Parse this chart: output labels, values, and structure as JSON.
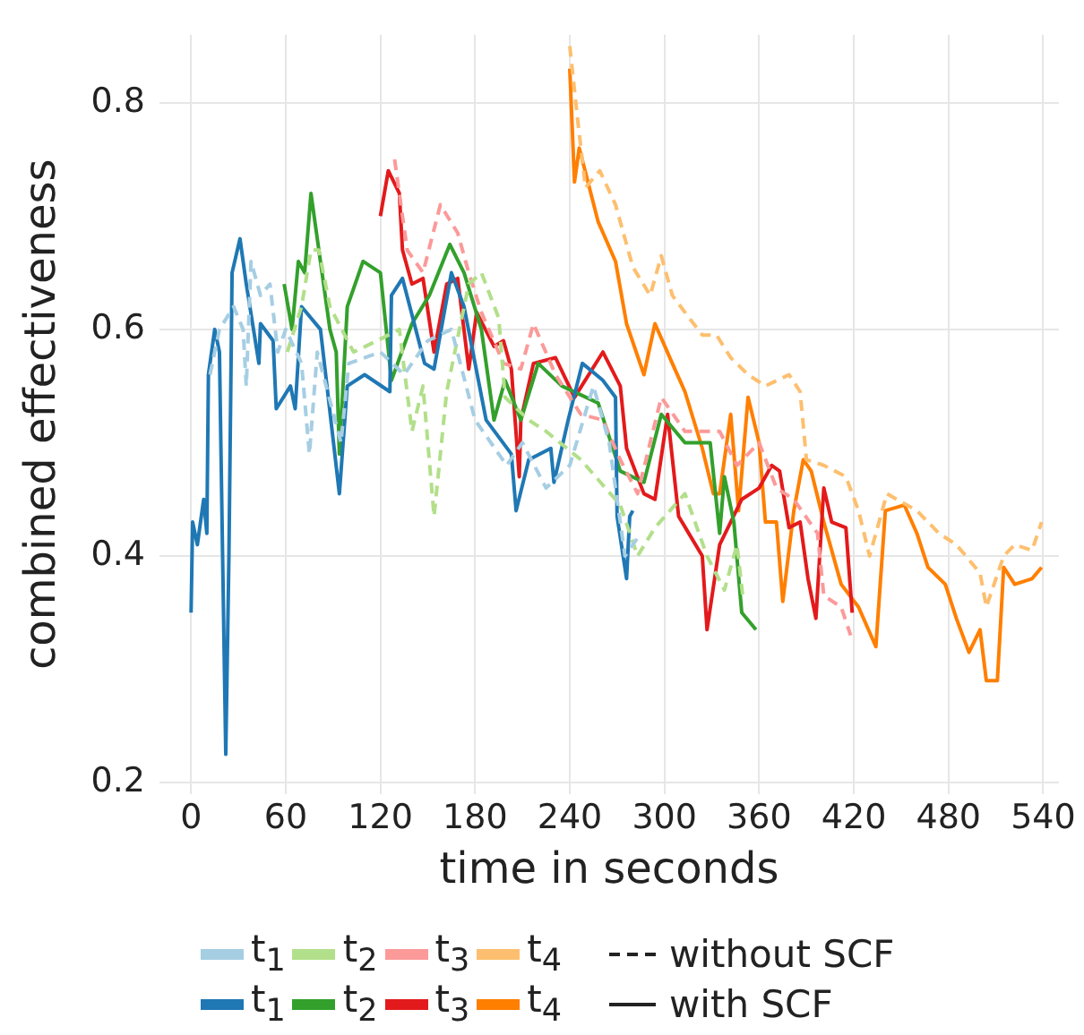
{
  "chart_data": {
    "type": "line",
    "xlabel": "time in seconds",
    "ylabel": "combined effectiveness",
    "xlim": [
      -20,
      550
    ],
    "xticks": [
      0,
      60,
      120,
      180,
      240,
      300,
      360,
      420,
      480,
      540
    ],
    "ylim": [
      0.19,
      0.86
    ],
    "yticks": [
      0.2,
      0.4,
      0.6,
      0.8
    ],
    "grid": true,
    "legend": "bottom",
    "marker": "none",
    "annotations": [
      "without SCF",
      "with SCF"
    ],
    "series": [
      {
        "name": "t$_{1}$",
        "color": "#a6cee3",
        "line_style": "dashed",
        "x": [
          12,
          18,
          27,
          33,
          35,
          38,
          44,
          50,
          55,
          60,
          70,
          75,
          80,
          95,
          100,
          120,
          135,
          150,
          165,
          180,
          200,
          210,
          225,
          240,
          255,
          265,
          275,
          285
        ],
        "values": [
          0.56,
          0.6,
          0.62,
          0.6,
          0.55,
          0.66,
          0.63,
          0.64,
          0.58,
          0.6,
          0.57,
          0.49,
          0.58,
          0.5,
          0.57,
          0.58,
          0.56,
          0.59,
          0.6,
          0.52,
          0.48,
          0.5,
          0.46,
          0.48,
          0.55,
          0.5,
          0.4,
          0.42
        ]
      },
      {
        "name": "t$_{2}$",
        "color": "#b2df8a",
        "line_style": "dashed",
        "x": [
          61,
          70,
          76,
          81,
          88,
          103,
          118,
          132,
          140,
          147,
          154,
          162,
          176,
          184,
          195,
          199,
          214,
          225,
          247,
          272,
          283,
          294,
          313,
          327,
          338,
          346,
          350
        ],
        "values": [
          0.58,
          0.62,
          0.67,
          0.67,
          0.62,
          0.58,
          0.59,
          0.6,
          0.51,
          0.55,
          0.435,
          0.545,
          0.64,
          0.65,
          0.61,
          0.54,
          0.52,
          0.51,
          0.485,
          0.445,
          0.4,
          0.425,
          0.455,
          0.4,
          0.37,
          0.41,
          0.36
        ]
      },
      {
        "name": "t$_{3}$",
        "color": "#fb9a99",
        "line_style": "dashed",
        "x": [
          129,
          137,
          147,
          158,
          169,
          176,
          184,
          198,
          209,
          217,
          231,
          247,
          261,
          272,
          283,
          298,
          313,
          327,
          335,
          346,
          360,
          371,
          382,
          397,
          401,
          412,
          418
        ],
        "values": [
          0.75,
          0.67,
          0.65,
          0.71,
          0.685,
          0.65,
          0.615,
          0.57,
          0.565,
          0.605,
          0.56,
          0.525,
          0.52,
          0.485,
          0.455,
          0.54,
          0.51,
          0.51,
          0.51,
          0.48,
          0.5,
          0.46,
          0.45,
          0.42,
          0.365,
          0.355,
          0.33
        ]
      },
      {
        "name": "t$_{4}$",
        "color": "#fdbf6f",
        "line_style": "dashed",
        "x": [
          240,
          245,
          250,
          259,
          269,
          280,
          291,
          298,
          305,
          313,
          324,
          333,
          342,
          353,
          364,
          379,
          386,
          390,
          401,
          415,
          423,
          430,
          441,
          460,
          474,
          485,
          500,
          504,
          515,
          522,
          533,
          539
        ],
        "values": [
          0.85,
          0.785,
          0.725,
          0.74,
          0.71,
          0.655,
          0.63,
          0.665,
          0.63,
          0.615,
          0.595,
          0.595,
          0.575,
          0.56,
          0.55,
          0.56,
          0.545,
          0.485,
          0.48,
          0.47,
          0.44,
          0.4,
          0.455,
          0.44,
          0.42,
          0.41,
          0.385,
          0.355,
          0.4,
          0.41,
          0.405,
          0.43
        ]
      },
      {
        "name": "t$_{1}$",
        "color": "#1f78b4",
        "line_style": "solid",
        "x": [
          0,
          1,
          4,
          8,
          10,
          11,
          15,
          18,
          20,
          22,
          24,
          26,
          31,
          35,
          43,
          44,
          52,
          54,
          63,
          66,
          70,
          82,
          94,
          99,
          110,
          126,
          127,
          134,
          148,
          154,
          165,
          173,
          187,
          203,
          206,
          214,
          228,
          230,
          239,
          248,
          261,
          269,
          270,
          276,
          278,
          280
        ],
        "values": [
          0.35,
          0.43,
          0.41,
          0.45,
          0.42,
          0.56,
          0.6,
          0.58,
          0.4,
          0.225,
          0.4,
          0.65,
          0.68,
          0.64,
          0.57,
          0.605,
          0.59,
          0.53,
          0.55,
          0.53,
          0.62,
          0.6,
          0.455,
          0.55,
          0.56,
          0.545,
          0.63,
          0.645,
          0.57,
          0.565,
          0.65,
          0.62,
          0.52,
          0.49,
          0.44,
          0.485,
          0.495,
          0.465,
          0.52,
          0.57,
          0.555,
          0.54,
          0.435,
          0.38,
          0.435,
          0.44
        ]
      },
      {
        "name": "t$_{2}$",
        "color": "#33a02c",
        "line_style": "solid",
        "x": [
          59,
          64,
          68,
          72,
          76,
          82,
          88,
          92,
          94,
          99,
          109,
          120,
          127,
          140,
          151,
          164,
          173,
          184,
          192,
          199,
          209,
          220,
          235,
          258,
          272,
          287,
          298,
          313,
          329,
          335,
          338,
          344,
          349,
          358
        ],
        "values": [
          0.64,
          0.6,
          0.66,
          0.65,
          0.72,
          0.66,
          0.6,
          0.58,
          0.49,
          0.62,
          0.66,
          0.65,
          0.555,
          0.605,
          0.63,
          0.675,
          0.65,
          0.6,
          0.52,
          0.555,
          0.52,
          0.57,
          0.55,
          0.535,
          0.475,
          0.465,
          0.525,
          0.5,
          0.5,
          0.42,
          0.47,
          0.43,
          0.35,
          0.335
        ]
      },
      {
        "name": "t$_{3}$",
        "color": "#e31a1c",
        "line_style": "solid",
        "x": [
          120,
          125,
          132,
          134,
          140,
          147,
          154,
          162,
          169,
          176,
          181,
          192,
          198,
          203,
          208,
          209,
          217,
          231,
          243,
          261,
          272,
          276,
          287,
          294,
          302,
          309,
          324,
          327,
          335,
          342,
          349,
          360,
          368,
          373,
          379,
          386,
          391,
          396,
          401,
          406,
          415,
          419
        ],
        "values": [
          0.7,
          0.74,
          0.72,
          0.67,
          0.64,
          0.645,
          0.58,
          0.64,
          0.645,
          0.565,
          0.615,
          0.585,
          0.59,
          0.565,
          0.47,
          0.52,
          0.57,
          0.575,
          0.54,
          0.58,
          0.55,
          0.495,
          0.455,
          0.45,
          0.525,
          0.435,
          0.4,
          0.335,
          0.41,
          0.43,
          0.45,
          0.46,
          0.48,
          0.475,
          0.425,
          0.43,
          0.38,
          0.345,
          0.46,
          0.43,
          0.425,
          0.35
        ]
      },
      {
        "name": "t$_{4}$",
        "color": "#ff7f00",
        "line_style": "solid",
        "x": [
          240,
          243,
          246,
          258,
          269,
          276,
          287,
          294,
          305,
          313,
          324,
          331,
          335,
          342,
          347,
          353,
          360,
          364,
          371,
          375,
          382,
          388,
          393,
          401,
          412,
          423,
          434,
          440,
          452,
          460,
          467,
          478,
          485,
          493,
          500,
          504,
          511,
          515,
          522,
          533,
          539
        ],
        "values": [
          0.83,
          0.73,
          0.76,
          0.695,
          0.66,
          0.605,
          0.56,
          0.605,
          0.57,
          0.545,
          0.495,
          0.455,
          0.455,
          0.525,
          0.44,
          0.54,
          0.5,
          0.43,
          0.43,
          0.36,
          0.44,
          0.485,
          0.475,
          0.43,
          0.375,
          0.355,
          0.32,
          0.44,
          0.445,
          0.42,
          0.39,
          0.375,
          0.345,
          0.315,
          0.335,
          0.29,
          0.29,
          0.39,
          0.375,
          0.38,
          0.39
        ]
      }
    ]
  }
}
